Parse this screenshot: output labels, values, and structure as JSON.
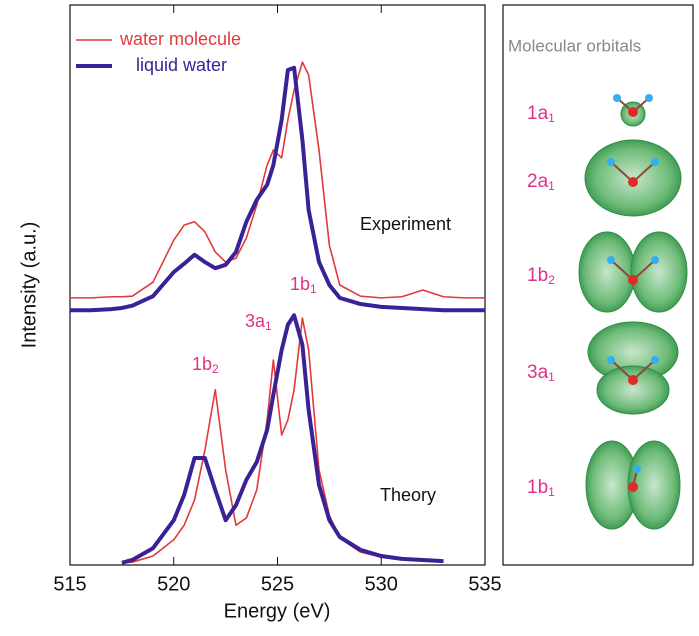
{
  "chart_data": {
    "type": "line",
    "x_label": "Energy (eV)",
    "y_label": "Intensity (a.u.)",
    "xlim": [
      515,
      535
    ],
    "xticks": [
      515,
      520,
      525,
      530,
      535
    ],
    "ylim": [
      0,
      100
    ],
    "x": [
      515,
      516,
      517,
      517.5,
      518,
      519,
      520,
      520.5,
      521,
      521.5,
      522,
      522.5,
      523,
      523.5,
      524,
      524.5,
      524.8,
      525.2,
      525.5,
      525.8,
      526.2,
      526.5,
      527,
      527.5,
      528,
      529,
      530,
      531,
      532,
      533,
      534,
      535
    ],
    "series": [
      {
        "name": "water molecule",
        "color": "#e23a3a",
        "width": 1.6,
        "values": [
          47.7,
          47.7,
          47.9,
          47.9,
          48.0,
          50.5,
          58.0,
          60.7,
          61.3,
          59.5,
          55.9,
          54.1,
          54.8,
          58.4,
          64.3,
          71.4,
          74.1,
          72.7,
          79.5,
          84.8,
          89.8,
          87.5,
          74.1,
          57.1,
          50.0,
          48.0,
          47.7,
          47.9,
          49.1,
          47.9,
          47.7,
          47.7
        ],
        "theory_values": [
          null,
          null,
          null,
          0.4,
          0.5,
          1.6,
          4.5,
          7.1,
          11.6,
          20.5,
          31.3,
          17.0,
          7.1,
          8.4,
          13.4,
          25.9,
          36.6,
          23.2,
          25.9,
          31.3,
          44.1,
          38.4,
          17.0,
          8.9,
          4.8,
          2.3,
          1.4,
          0.9,
          0.7,
          0.5,
          null,
          null
        ]
      },
      {
        "name": "liquid water",
        "color": "#3b2196",
        "width": 4,
        "values": [
          45.5,
          45.5,
          45.7,
          45.9,
          46.3,
          48.0,
          52.3,
          53.8,
          55.4,
          54.1,
          53.0,
          53.6,
          55.9,
          61.3,
          65.2,
          67.9,
          71.4,
          79.5,
          88.4,
          88.8,
          75.9,
          63.4,
          54.1,
          50.0,
          47.7,
          46.6,
          46.1,
          45.9,
          45.7,
          45.5,
          45.5,
          45.5
        ],
        "theory_values": [
          null,
          null,
          null,
          0.4,
          0.9,
          3.0,
          8.0,
          12.5,
          19.1,
          19.1,
          13.4,
          8.0,
          10.7,
          15.2,
          18.4,
          24.1,
          30.4,
          38.4,
          42.9,
          44.6,
          39.3,
          27.7,
          14.3,
          8.0,
          5.0,
          2.7,
          1.6,
          1.1,
          0.9,
          0.7,
          null,
          null
        ]
      }
    ],
    "annotations": [
      "Experiment",
      "Theory"
    ],
    "peak_labels": [
      {
        "main": "1b",
        "sub": "1"
      },
      {
        "main": "3a",
        "sub": "1"
      },
      {
        "main": "1b",
        "sub": "2"
      }
    ]
  },
  "orbitals": {
    "title": "Molecular orbitals",
    "labels": [
      {
        "main": "1a",
        "sub": "1"
      },
      {
        "main": "2a",
        "sub": "1"
      },
      {
        "main": "1b",
        "sub": "2"
      },
      {
        "main": "3a",
        "sub": "1"
      },
      {
        "main": "1b",
        "sub": "1"
      }
    ]
  }
}
